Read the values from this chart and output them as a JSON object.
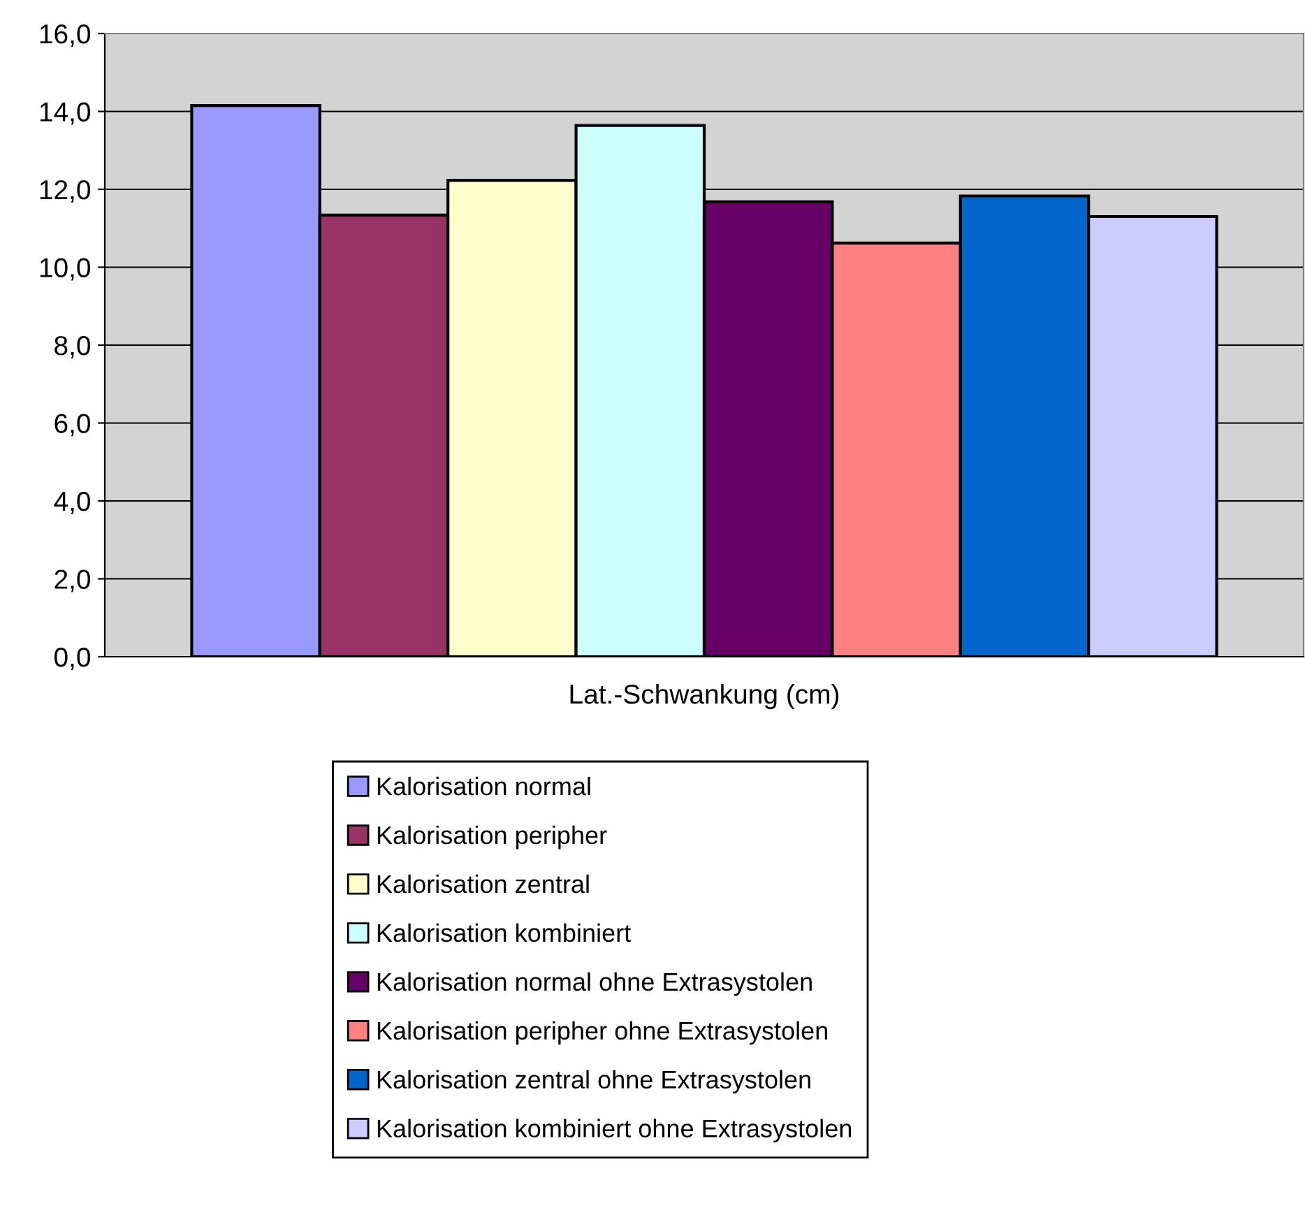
{
  "chart_data": {
    "type": "bar",
    "categories": [
      "Lat.-Schwankung (cm)"
    ],
    "series": [
      {
        "name": "Kalorisation normal",
        "color": "#9999ff",
        "values": [
          14.15
        ]
      },
      {
        "name": "Kalorisation peripher",
        "color": "#993366",
        "values": [
          11.34
        ]
      },
      {
        "name": "Kalorisation zentral",
        "color": "#ffffcc",
        "values": [
          12.23
        ]
      },
      {
        "name": "Kalorisation kombiniert",
        "color": "#ccffff",
        "values": [
          13.64
        ]
      },
      {
        "name": "Kalorisation normal ohne Extrasystolen",
        "color": "#660066",
        "values": [
          11.68
        ]
      },
      {
        "name": "Kalorisation peripher ohne Extrasystolen",
        "color": "#ff8080",
        "values": [
          10.62
        ]
      },
      {
        "name": "Kalorisation zentral ohne Extrasystolen",
        "color": "#0066cc",
        "values": [
          11.83
        ]
      },
      {
        "name": "Kalorisation kombiniert ohne Extrasystolen",
        "color": "#ccccff",
        "values": [
          11.3
        ]
      }
    ],
    "ylim": [
      0,
      16
    ],
    "yticks": [
      {
        "value": 0,
        "label": "0,0"
      },
      {
        "value": 2,
        "label": "2,0"
      },
      {
        "value": 4,
        "label": "4,0"
      },
      {
        "value": 6,
        "label": "6,0"
      },
      {
        "value": 8,
        "label": "8,0"
      },
      {
        "value": 10,
        "label": "10,0"
      },
      {
        "value": 12,
        "label": "12,0"
      },
      {
        "value": 14,
        "label": "14,0"
      },
      {
        "value": 16,
        "label": "16,0"
      }
    ],
    "grid": "y",
    "legend": "bottom"
  }
}
